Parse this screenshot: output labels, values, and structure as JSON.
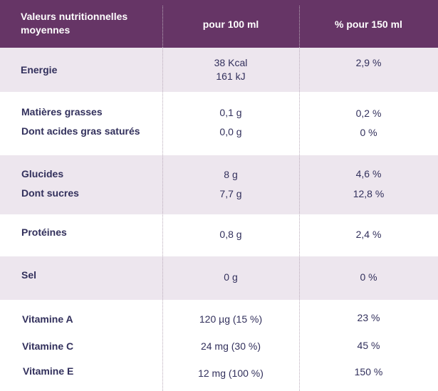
{
  "header": {
    "label": "Valeurs nutritionnelles moyennes",
    "col_per_100": "pour 100 ml",
    "col_per_150": "% pour 150 ml"
  },
  "rows": {
    "energie": {
      "label": "Energie",
      "per100_kcal": "38 Kcal",
      "per100_kj": "161 kJ",
      "per150": "2,9 %"
    },
    "matieres_grasses": {
      "label": "Matières grasses",
      "per100": "0,1 g",
      "per150": "0,2 %"
    },
    "acides_gras_satures": {
      "label": "Dont acides gras saturés",
      "per100": "0,0 g",
      "per150": "0 %"
    },
    "glucides": {
      "label": "Glucides",
      "per100": "8 g",
      "per150": "4,6 %"
    },
    "sucres": {
      "label": "Dont sucres",
      "per100": "7,7 g",
      "per150": "12,8 %"
    },
    "proteines": {
      "label": "Protéines",
      "per100": "0,8 g",
      "per150": "2,4 %"
    },
    "sel": {
      "label": "Sel",
      "per100": "0 g",
      "per150": "0 %"
    },
    "vitamine_a": {
      "label": "Vitamine A",
      "per100": "120 µg (15 %)",
      "per150": "23 %"
    },
    "vitamine_c": {
      "label": "Vitamine C",
      "per100": "24 mg (30 %)",
      "per150": "45 %"
    },
    "vitamine_e": {
      "label": "Vitamine E",
      "per100": "12 mg (100 %)",
      "per150": "150 %"
    }
  },
  "colors": {
    "header_bg": "#663566",
    "shaded_band": "#ede6ee",
    "text": "#32305c"
  }
}
